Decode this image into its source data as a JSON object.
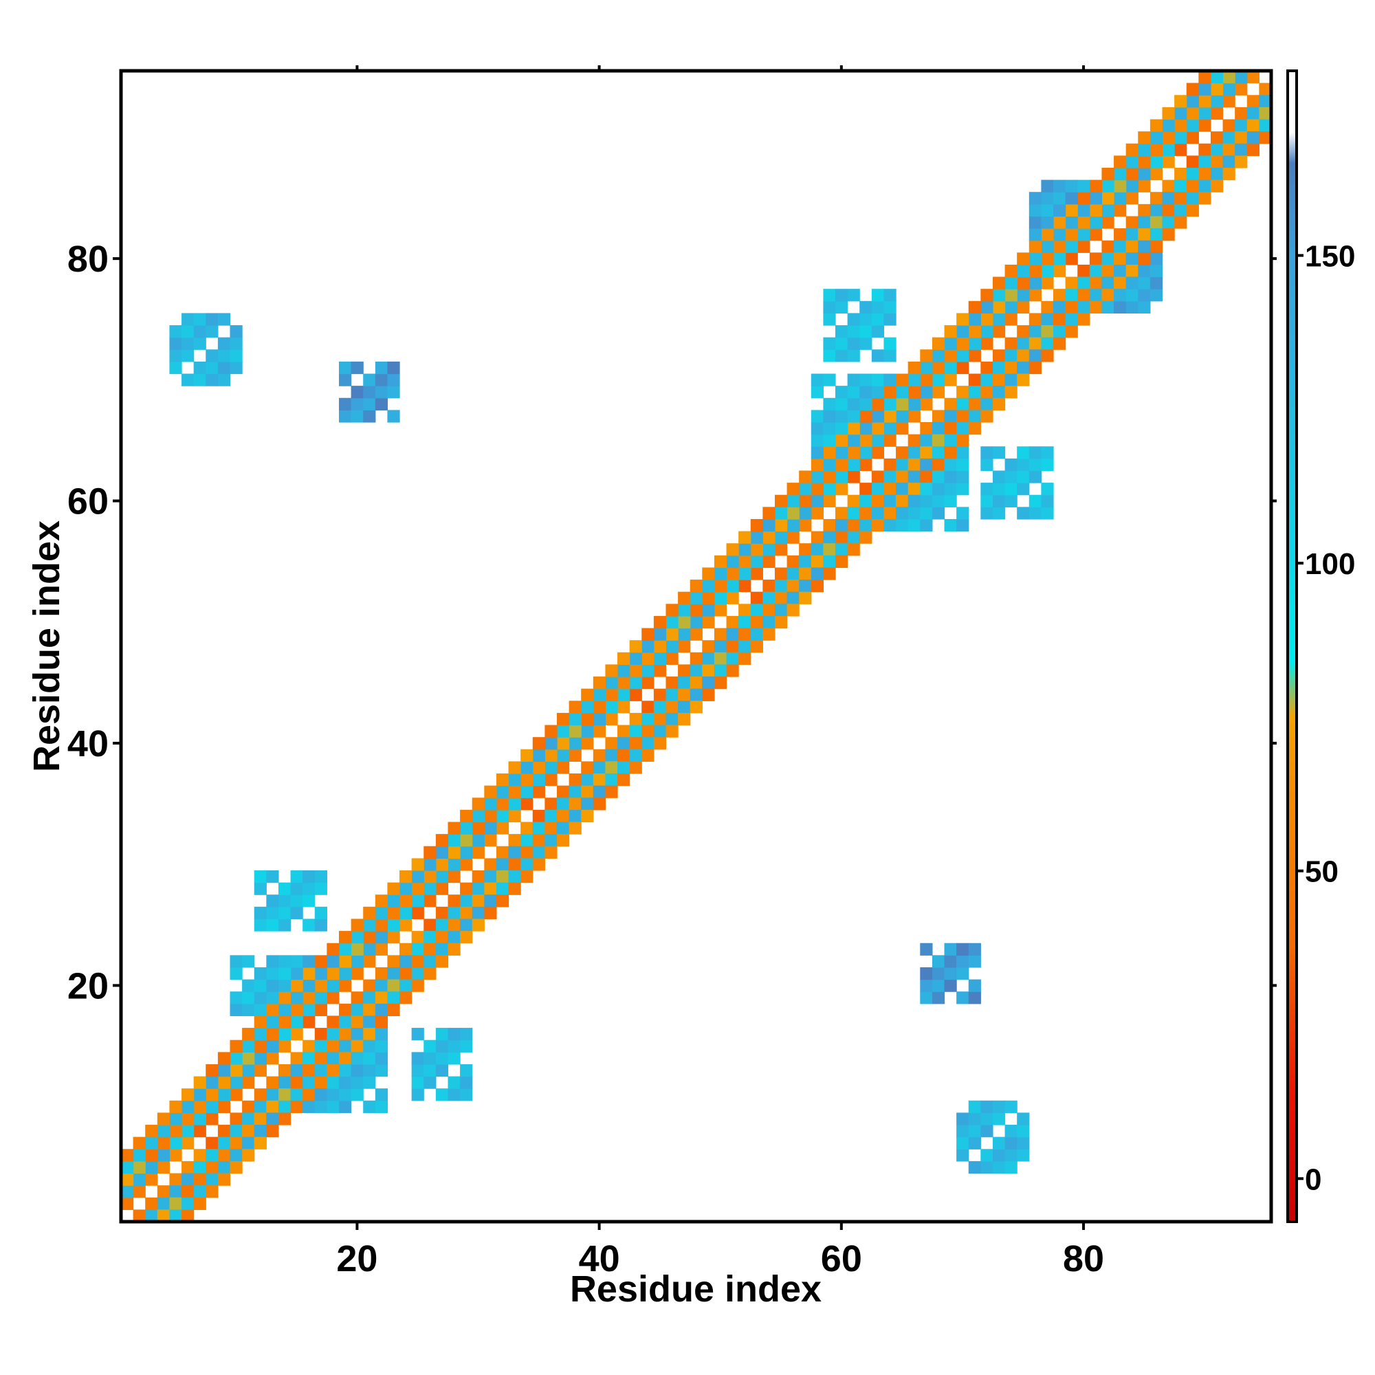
{
  "chart_data": {
    "type": "heatmap",
    "title": "",
    "xlabel": "Residue index",
    "ylabel": "Residue index",
    "xlim": [
      0.5,
      95.5
    ],
    "ylim": [
      0.5,
      95.5
    ],
    "xticks": [
      "20",
      "40",
      "60",
      "80"
    ],
    "yticks": [
      "20",
      "40",
      "60",
      "80"
    ],
    "grid": false,
    "legend": "right",
    "colorbar": {
      "range": [
        -7,
        180
      ],
      "ticks": [
        "0",
        "50",
        "100",
        "150"
      ],
      "stops": [
        {
          "value": -7,
          "color": "#cc0000"
        },
        {
          "value": 13,
          "color": "#ee1100"
        },
        {
          "value": 25,
          "color": "#f03a00"
        },
        {
          "value": 38,
          "color": "#f66a00"
        },
        {
          "value": 62,
          "color": "#f78a00"
        },
        {
          "value": 75,
          "color": "#f6a300"
        },
        {
          "value": 84,
          "color": "#00ecee"
        },
        {
          "value": 110,
          "color": "#19cde6"
        },
        {
          "value": 150,
          "color": "#3aa2dc"
        },
        {
          "value": 165,
          "color": "#4a7fc1"
        },
        {
          "value": 170,
          "color": "#ffffff"
        },
        {
          "value": 180,
          "color": "#ffffff"
        }
      ]
    },
    "color_legend": {
      "red": "#ee1100",
      "orange_red": "#f25c0a",
      "orange": "#f6a300",
      "cyan": "#00eeee",
      "sky": "#22d1e6",
      "steel": "#4a90c8"
    },
    "diagonal_bands": [
      {
        "from": 1,
        "to": 95,
        "offset": 1,
        "value": 35
      },
      {
        "from": 1,
        "to": 95,
        "offset": 2,
        "value": 110
      },
      {
        "from": 1,
        "to": 95,
        "offset": 3,
        "value": 45
      },
      {
        "from": 1,
        "to": 95,
        "offset": 4,
        "value": 115
      },
      {
        "from": 1,
        "to": 95,
        "offset": 5,
        "value": 40
      }
    ],
    "regions": [
      {
        "x": [
          15,
          22
        ],
        "y": [
          10,
          22
        ],
        "value": 130
      },
      {
        "x": [
          10,
          14
        ],
        "y": [
          18,
          22
        ],
        "value": 125
      },
      {
        "x": [
          12,
          17
        ],
        "y": [
          25,
          29
        ],
        "value": 120
      },
      {
        "x": [
          25,
          29
        ],
        "y": [
          11,
          16
        ],
        "value": 125
      },
      {
        "x": [
          19,
          23
        ],
        "y": [
          67,
          71
        ],
        "value": 150
      },
      {
        "x": [
          67,
          71
        ],
        "y": [
          19,
          23
        ],
        "value": 150
      },
      {
        "x": [
          5,
          10
        ],
        "y": [
          70,
          75
        ],
        "value": 130
      },
      {
        "x": [
          70,
          75
        ],
        "y": [
          5,
          10
        ],
        "value": 130
      },
      {
        "x": [
          58,
          66
        ],
        "y": [
          62,
          70
        ],
        "value": 125
      },
      {
        "x": [
          62,
          70
        ],
        "y": [
          58,
          66
        ],
        "value": 125
      },
      {
        "x": [
          59,
          64
        ],
        "y": [
          72,
          77
        ],
        "value": 120
      },
      {
        "x": [
          72,
          77
        ],
        "y": [
          59,
          64
        ],
        "value": 120
      },
      {
        "x": [
          76,
          81
        ],
        "y": [
          81,
          86
        ],
        "value": 140
      },
      {
        "x": [
          81,
          86
        ],
        "y": [
          76,
          81
        ],
        "value": 140
      }
    ]
  }
}
